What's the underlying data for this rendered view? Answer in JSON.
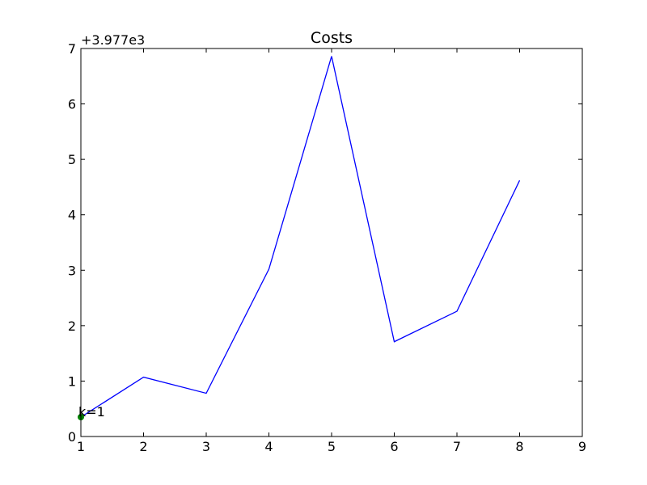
{
  "chart_data": {
    "type": "line",
    "title": "Costs",
    "xlabel": "",
    "ylabel": "",
    "y_offset_label": "+3.977e3",
    "y_offset": 3977,
    "xlim": [
      1,
      9
    ],
    "ylim": [
      3977,
      3984
    ],
    "x_ticks": [
      1,
      2,
      3,
      4,
      5,
      6,
      7,
      8,
      9
    ],
    "y_ticks": [
      0,
      1,
      2,
      3,
      4,
      5,
      6,
      7
    ],
    "grid": false,
    "series": [
      {
        "color": "#0000ff",
        "x": [
          1,
          2,
          3,
          4,
          5,
          6,
          7,
          8
        ],
        "y": [
          3977.35,
          3978.07,
          3977.78,
          3980.02,
          3983.86,
          3978.71,
          3979.26,
          3981.62
        ]
      }
    ],
    "annotation": {
      "text": "k=1",
      "x": 1,
      "y": 3977.35,
      "marker_color": "#008000"
    }
  }
}
